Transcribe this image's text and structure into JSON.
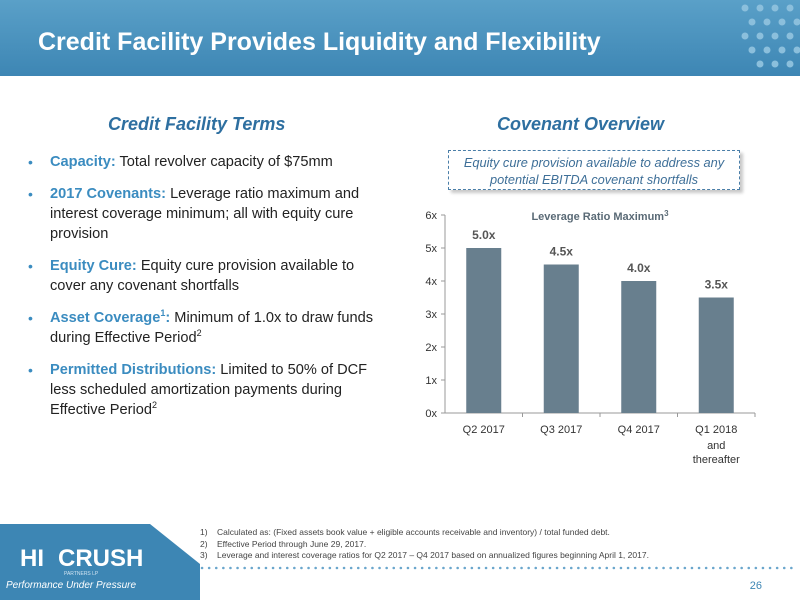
{
  "header": {
    "title": "Credit Facility Provides Liquidity and Flexibility"
  },
  "left": {
    "heading": "Credit Facility Terms",
    "bullets": [
      {
        "term": "Capacity:",
        "text": "Total revolver capacity of $75mm"
      },
      {
        "term": "2017 Covenants:",
        "text": "Leverage ratio maximum and interest coverage minimum; all with equity cure provision"
      },
      {
        "term": "Equity Cure:",
        "text": "Equity cure provision available to cover any covenant shortfalls"
      },
      {
        "term": "Asset Coverage",
        "sup": "1",
        "term_colon": ":",
        "text": "Minimum of 1.0x to draw funds during Effective Period",
        "text_sup": "2"
      },
      {
        "term": "Permitted Distributions:",
        "text": "Limited to 50% of DCF less scheduled amortization payments during Effective Period",
        "text_sup": "2"
      }
    ]
  },
  "right": {
    "heading": "Covenant Overview",
    "callout": "Equity cure provision available to address any potential EBITDA covenant shortfalls"
  },
  "chart_data": {
    "type": "bar",
    "title": "Leverage Ratio Maximum",
    "title_sup": "3",
    "categories": [
      "Q2 2017",
      "Q3 2017",
      "Q4 2017",
      "Q1 2018"
    ],
    "category_sublabels": [
      "",
      "",
      "",
      "and thereafter"
    ],
    "values": [
      5.0,
      4.5,
      4.0,
      3.5
    ],
    "data_labels": [
      "5.0x",
      "4.5x",
      "4.0x",
      "3.5x"
    ],
    "y_ticks": [
      "0x",
      "1x",
      "2x",
      "3x",
      "4x",
      "5x",
      "6x"
    ],
    "ylim": [
      0,
      6
    ],
    "bar_color": "#687f8e",
    "grid": false
  },
  "footnotes": [
    {
      "num": "1)",
      "text": "Calculated as: (Fixed assets book value + eligible accounts receivable and inventory) / total funded debt."
    },
    {
      "num": "2)",
      "text": "Effective Period through June 29, 2017."
    },
    {
      "num": "3)",
      "text": "Leverage and interest coverage ratios for Q2 2017 – Q4 2017 based on annualized figures beginning April 1, 2017."
    }
  ],
  "logo": {
    "name": "HI CRUSH",
    "sub": "PARTNERS LP",
    "tagline": "Performance Under Pressure"
  },
  "page_number": "26",
  "colors": {
    "accent": "#3b8cc0",
    "header": "#4a93be",
    "bar": "#687f8e"
  }
}
